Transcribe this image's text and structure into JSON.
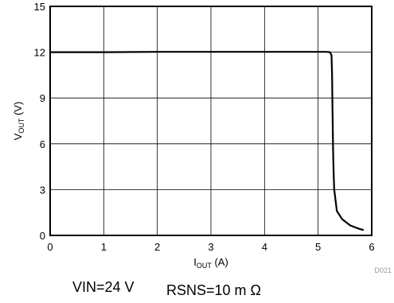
{
  "chart_data": {
    "type": "line",
    "xlabel": {
      "main": "I",
      "sub": "OUT",
      "unit": " (A)"
    },
    "ylabel": {
      "main": "V",
      "sub": "OUT",
      "unit": " (V)"
    },
    "xlim": [
      0,
      6
    ],
    "ylim": [
      0,
      15
    ],
    "xticks": [
      "0",
      "1",
      "2",
      "3",
      "4",
      "5",
      "6"
    ],
    "yticks": [
      "0",
      "3",
      "6",
      "9",
      "12",
      "15"
    ],
    "grid": true,
    "figure_code": "D021",
    "series": [
      {
        "x": [
          0,
          1,
          2,
          3,
          4,
          5,
          5.15,
          5.22,
          5.25,
          5.26,
          5.27,
          5.28,
          5.29,
          5.3,
          5.35,
          5.45,
          5.6,
          5.75,
          5.85
        ],
        "y": [
          12.0,
          12.0,
          12.02,
          12.02,
          12.02,
          12.02,
          12.02,
          12.0,
          11.8,
          10.5,
          8.0,
          5.5,
          4.0,
          3.0,
          1.6,
          1.05,
          0.65,
          0.45,
          0.35
        ]
      }
    ]
  },
  "conditions": {
    "vin": "VIN=24 V",
    "rsns": "RSNS=10 m Ω"
  }
}
